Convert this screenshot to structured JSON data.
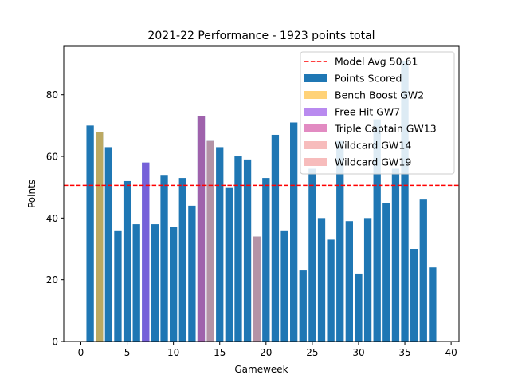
{
  "chart_data": {
    "type": "bar",
    "title": "2021-22 Performance - 1923 points total",
    "xlabel": "Gameweek",
    "ylabel": "Points",
    "xlim": [
      -1.85,
      40.85
    ],
    "ylim": [
      0,
      95.7
    ],
    "xticks": [
      0,
      5,
      10,
      15,
      20,
      25,
      30,
      35,
      40
    ],
    "yticks": [
      0,
      20,
      40,
      60,
      80
    ],
    "legend_position": "top-right",
    "series": [
      {
        "name": "Points Scored",
        "color": "#1f77b4",
        "x": [
          1,
          2,
          3,
          4,
          5,
          6,
          7,
          8,
          9,
          10,
          11,
          12,
          13,
          14,
          15,
          16,
          17,
          18,
          19,
          20,
          21,
          22,
          23,
          24,
          25,
          26,
          27,
          28,
          29,
          30,
          31,
          32,
          33,
          34,
          35,
          36,
          37,
          38
        ],
        "values": [
          70,
          68,
          63,
          36,
          52,
          38,
          58,
          38,
          54,
          37,
          53,
          44,
          73,
          65,
          63,
          50,
          60,
          59,
          34,
          53,
          67,
          36,
          71,
          23,
          56,
          40,
          33,
          65,
          39,
          22,
          40,
          72,
          45,
          56,
          91,
          30,
          46,
          24
        ]
      }
    ],
    "highlights": [
      {
        "name": "Bench Boost GW2",
        "gameweek": 2,
        "color": "#ffbf3f",
        "opacity": 0.7
      },
      {
        "name": "Free Hit GW7",
        "gameweek": 7,
        "color": "#9b59e8",
        "opacity": 0.7
      },
      {
        "name": "Triple Captain GW13",
        "gameweek": 13,
        "color": "#d65aa8",
        "opacity": 0.7
      },
      {
        "name": "Wildcard GW14",
        "gameweek": 14,
        "color": "#f4a0a0",
        "opacity": 0.7
      },
      {
        "name": "Wildcard GW19",
        "gameweek": 19,
        "color": "#f4a0a0",
        "opacity": 0.7
      }
    ],
    "reference_line": {
      "name": "Model Avg 50.61",
      "value": 50.61,
      "color": "#ff0000",
      "style": "dashed"
    }
  }
}
